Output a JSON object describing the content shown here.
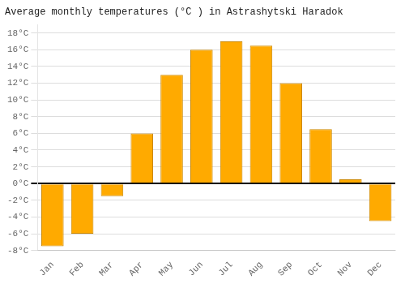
{
  "chart_data": {
    "type": "bar",
    "title": "Average monthly temperatures (°C ) in Astrashytski Haradok",
    "categories": [
      "Jan",
      "Feb",
      "Mar",
      "Apr",
      "May",
      "Jun",
      "Jul",
      "Aug",
      "Sep",
      "Oct",
      "Nov",
      "Dec"
    ],
    "values": [
      -7.5,
      -6.0,
      -1.5,
      6.0,
      13.0,
      16.0,
      17.0,
      16.5,
      12.0,
      6.5,
      0.5,
      -4.5
    ],
    "color": "#FFAA00",
    "ylim": [
      -8,
      19
    ],
    "yticks": [
      {
        "value": -8,
        "label": "-8°C"
      },
      {
        "value": -6,
        "label": "-6°C"
      },
      {
        "value": -4,
        "label": "-4°C"
      },
      {
        "value": -2,
        "label": "-2°C"
      },
      {
        "value": 0,
        "label": "0°C"
      },
      {
        "value": 2,
        "label": "2°C"
      },
      {
        "value": 4,
        "label": "4°C"
      },
      {
        "value": 6,
        "label": "6°C"
      },
      {
        "value": 8,
        "label": "8°C"
      },
      {
        "value": 10,
        "label": "10°C"
      },
      {
        "value": 12,
        "label": "12°C"
      },
      {
        "value": 14,
        "label": "14°C"
      },
      {
        "value": 16,
        "label": "16°C"
      },
      {
        "value": 18,
        "label": "18°C"
      }
    ],
    "grid": true
  }
}
